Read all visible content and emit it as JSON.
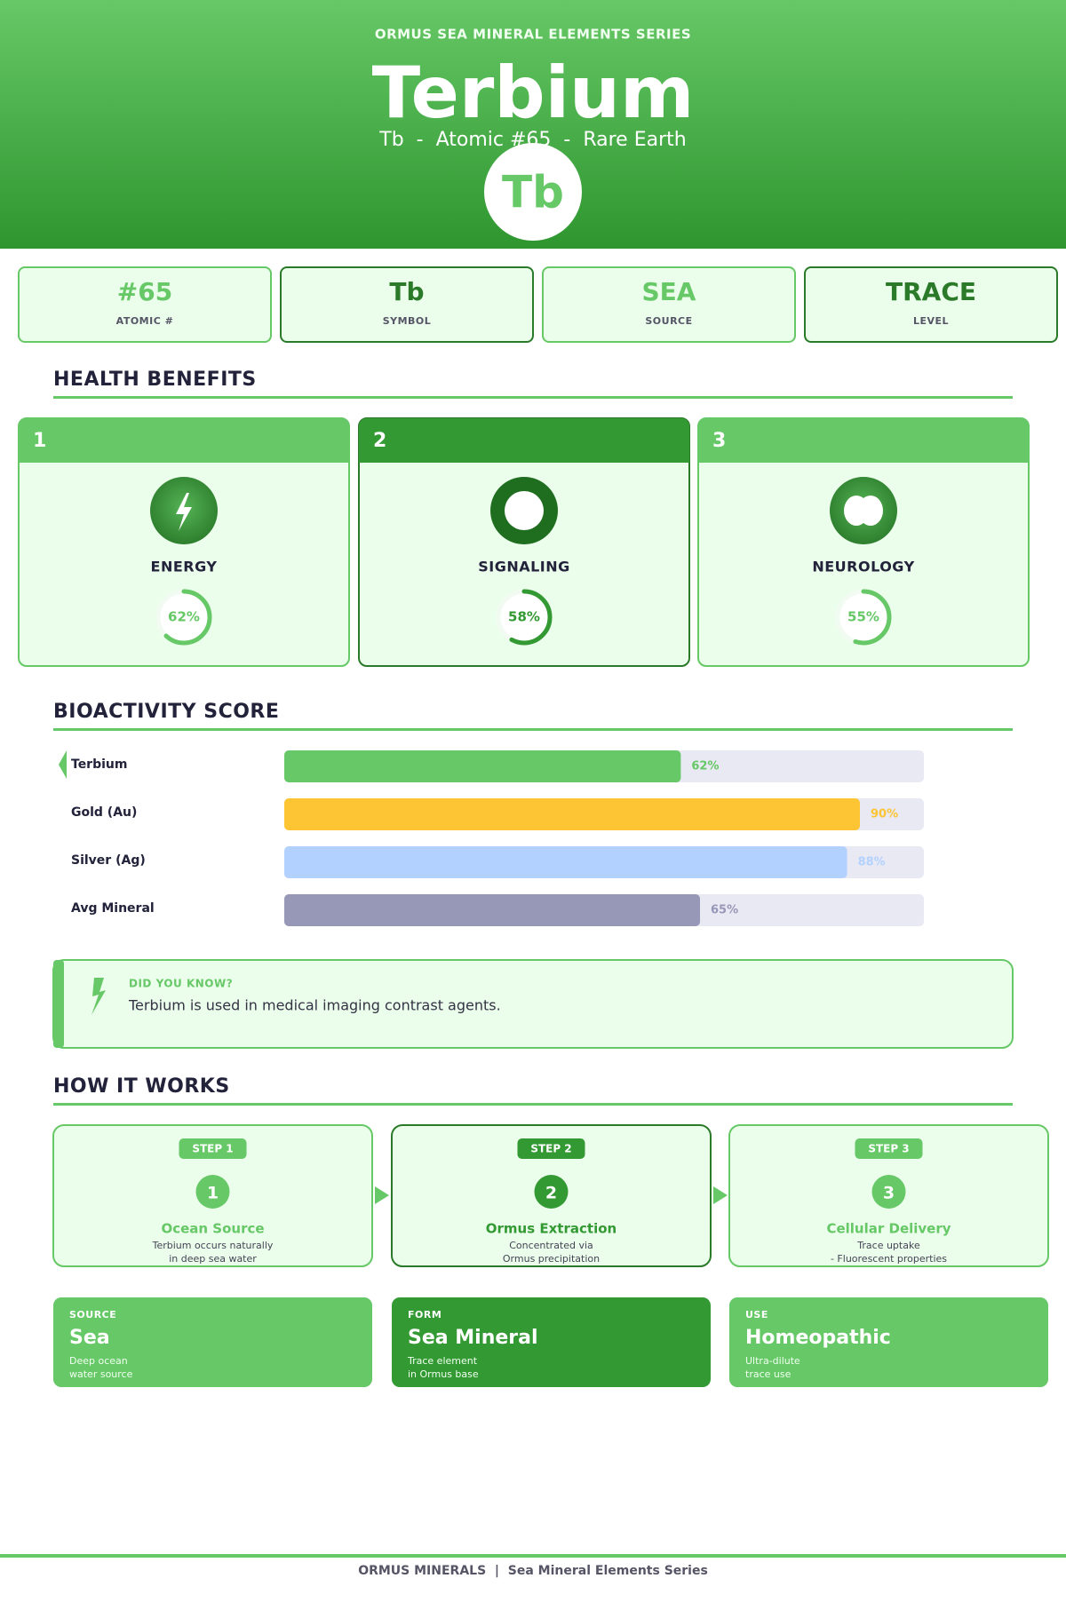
{
  "header": {
    "series": "ORMUS SEA MINERAL ELEMENTS SERIES",
    "title": "Terbium",
    "subtitle": "Tb  -  Atomic #65  -  Rare Earth",
    "badge": "Tb"
  },
  "stats": [
    {
      "value": "#65",
      "label": "ATOMIC #"
    },
    {
      "value": "Tb",
      "label": "SYMBOL"
    },
    {
      "value": "SEA",
      "label": "SOURCE"
    },
    {
      "value": "TRACE",
      "label": "LEVEL"
    }
  ],
  "benefits": {
    "title": "HEALTH BENEFITS",
    "range": [
      0,
      100
    ],
    "cards": [
      {
        "number": "1",
        "name": "ENERGY",
        "percent": 62,
        "percent_label": "62%"
      },
      {
        "number": "2",
        "name": "SIGNALING",
        "percent": 58,
        "percent_label": "58%"
      },
      {
        "number": "3",
        "name": "NEUROLOGY",
        "percent": 55,
        "percent_label": "55%"
      }
    ]
  },
  "bioactivity": {
    "title": "BIOACTIVITY SCORE",
    "xlim": [
      0,
      100
    ],
    "rows": [
      {
        "name": "Terbium",
        "value": 62,
        "value_label": "62%",
        "color": "#66c866"
      },
      {
        "name": "Gold (Au)",
        "value": 90,
        "value_label": "90%",
        "color": "#fdc433"
      },
      {
        "name": "Silver (Ag)",
        "value": 88,
        "value_label": "88%",
        "color": "#b3d1ff"
      },
      {
        "name": "Avg Mineral",
        "value": 65,
        "value_label": "65%",
        "color": "#9797b8"
      }
    ]
  },
  "fact": {
    "label": "DID YOU KNOW?",
    "text": "Terbium is used in medical imaging contrast agents."
  },
  "how": {
    "title": "HOW IT WORKS",
    "steps": [
      {
        "tag": "STEP 1",
        "number": "1",
        "title": "Ocean Source",
        "lines": [
          "Terbium occurs naturally",
          "in deep sea water"
        ]
      },
      {
        "tag": "STEP 2",
        "number": "2",
        "title": "Ormus Extraction",
        "lines": [
          "Concentrated via",
          "Ormus precipitation"
        ]
      },
      {
        "tag": "STEP 3",
        "number": "3",
        "title": "Cellular Delivery",
        "lines": [
          "Trace uptake",
          "- Fluorescent properties"
        ]
      }
    ]
  },
  "info": [
    {
      "label": "SOURCE",
      "title": "Sea",
      "lines": [
        "Deep ocean",
        "water source"
      ]
    },
    {
      "label": "FORM",
      "title": "Sea Mineral",
      "lines": [
        "Trace element",
        "in Ormus base"
      ]
    },
    {
      "label": "USE",
      "title": "Homeopathic",
      "lines": [
        "Ultra-dilute",
        "trace use"
      ]
    }
  ],
  "footer": "ORMUS MINERALS  |  Sea Mineral Elements Series"
}
